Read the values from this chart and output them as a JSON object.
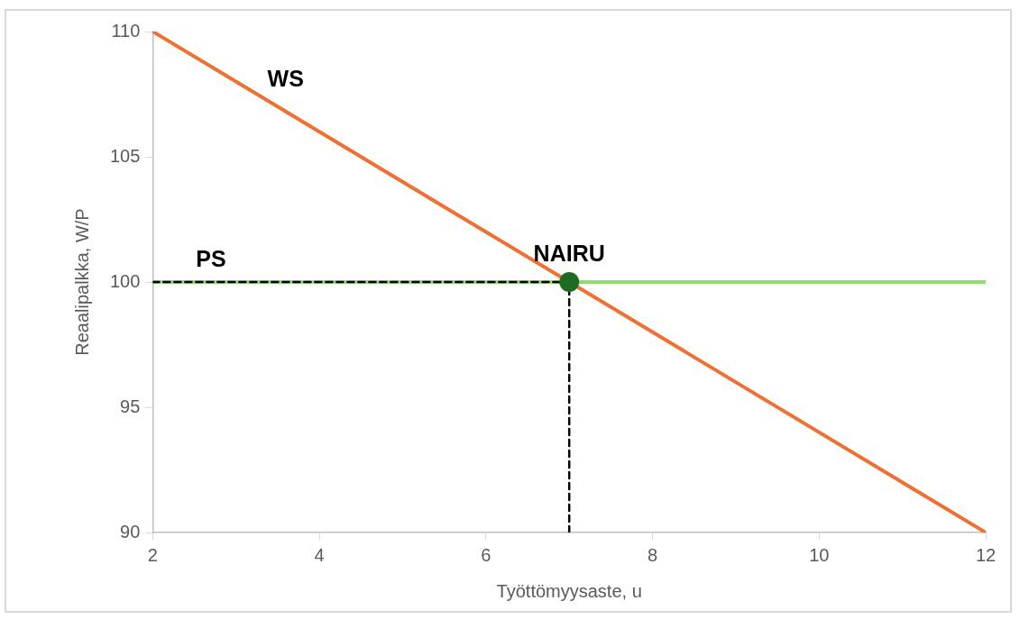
{
  "chart_data": {
    "type": "line",
    "xlabel": "Työttömyysaste, u",
    "ylabel": "Reaalipalkka, W/P",
    "xlim": [
      2,
      12
    ],
    "xticks": [
      2,
      4,
      6,
      8,
      10,
      12
    ],
    "ylim": [
      90,
      110
    ],
    "yticks": [
      90,
      95,
      100,
      105,
      110
    ],
    "grid": false,
    "legend": false,
    "series": [
      {
        "name": "PS",
        "type": "line",
        "color": "#8fdc6f",
        "x": [
          2,
          12
        ],
        "values": [
          100,
          100
        ],
        "marker": "none",
        "line_style": "solid"
      },
      {
        "name": "WS",
        "type": "line",
        "color": "#ed7132",
        "x": [
          2,
          12
        ],
        "values": [
          110,
          90
        ],
        "marker": "none",
        "line_style": "solid"
      },
      {
        "type": "line",
        "color": "#000000",
        "x": [
          2,
          7
        ],
        "values": [
          100,
          100
        ],
        "marker": "none",
        "line_style": "dashed"
      },
      {
        "type": "line",
        "color": "#000000",
        "x": [
          7,
          7
        ],
        "values": [
          90,
          100
        ],
        "marker": "none",
        "line_style": "dashed"
      },
      {
        "name": "NAIRU",
        "type": "scatter",
        "color": "#1e6b23",
        "x": [
          7
        ],
        "values": [
          100
        ],
        "marker": "circle"
      }
    ]
  }
}
